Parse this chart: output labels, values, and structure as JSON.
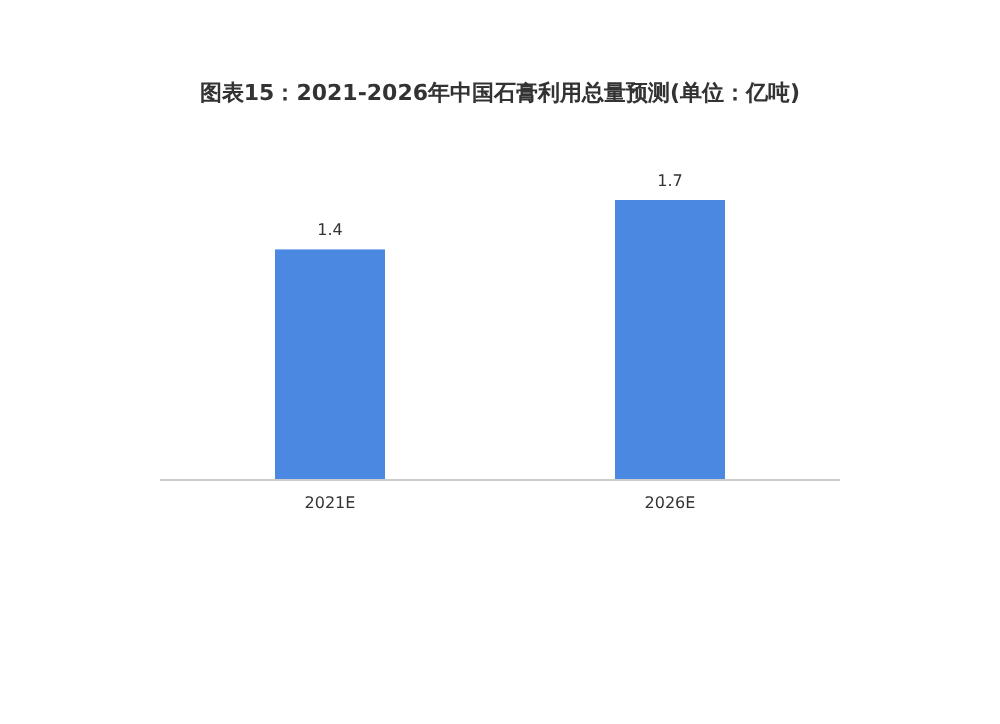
{
  "chart_data": {
    "type": "bar",
    "title": "图表15：2021-2026年中国石膏利用总量预测(单位：亿吨)",
    "categories": [
      "2021E",
      "2026E"
    ],
    "values": [
      1.4,
      1.7
    ],
    "color": "#4a88e2",
    "data_labels": true
  }
}
